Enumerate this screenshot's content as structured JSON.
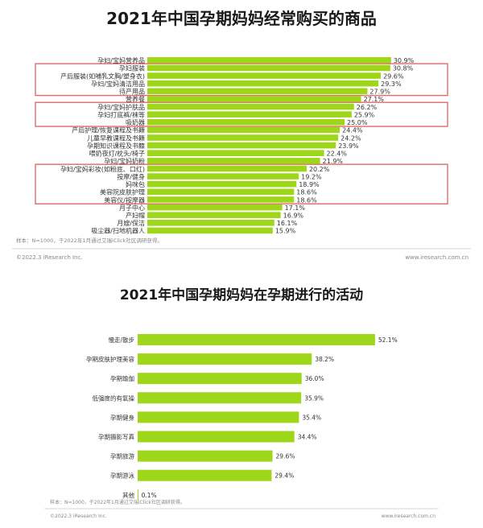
{
  "colors": {
    "bar": "#9ed61a",
    "highlight_box": "#e06b6b",
    "title": "#1a1a1a",
    "text": "#333333",
    "footer": "#888888",
    "rule": "#c8c8c8"
  },
  "chart_data": [
    {
      "type": "bar",
      "orientation": "horizontal",
      "title": "2021年中国孕期妈妈经常购买的商品",
      "categories": [
        "孕妇/宝妈营养品",
        "孕妇服装",
        "产后服装(如哺乳文胸/塑身衣)",
        "孕妇/宝妈清洁用品",
        "待产用品",
        "营养餐",
        "孕妇/宝妈护肤品",
        "孕妇打底裤/袜等",
        "吸奶器",
        "产后护理/恢复课程及书籍",
        "儿童早教课程及书籍",
        "孕期知识课程及书籍",
        "喂奶夜灯/枕头/椅子",
        "孕妇/宝妈奶粉",
        "孕妇/宝妈彩妆(如粉底、口红)",
        "按摩/健身",
        "妈咪包",
        "美容院皮肤护理",
        "美容仪/按摩器",
        "月子中心",
        "产妇帽",
        "月嫂/保洁",
        "吸尘器/扫地机器人"
      ],
      "values": [
        30.9,
        30.8,
        29.6,
        29.3,
        27.9,
        27.1,
        26.2,
        25.9,
        25.0,
        24.4,
        24.2,
        23.9,
        22.4,
        21.9,
        20.2,
        19.2,
        18.9,
        18.6,
        18.6,
        17.1,
        16.9,
        16.1,
        15.9
      ],
      "value_labels": [
        "30.9%",
        "30.8%",
        "29.6%",
        "29.3%",
        "27.9%",
        "27.1%",
        "26.2%",
        "25.9%",
        "25.0%",
        "24.4%",
        "24.2%",
        "23.9%",
        "22.4%",
        "21.9%",
        "20.2%",
        "19.2%",
        "18.9%",
        "18.6%",
        "18.6%",
        "17.1%",
        "16.9%",
        "16.1%",
        "15.9%"
      ],
      "highlight_groups": [
        [
          1,
          4
        ],
        [
          6,
          8
        ],
        [
          14,
          18
        ]
      ],
      "xlabel": "",
      "ylabel": "",
      "grid": false,
      "legend": "none",
      "note": "样本：N=1000，于2022年1月通过艾瑞iClick社区调研获得。",
      "copyright": "©2022.3 iResearch Inc.",
      "website": "www.iresearch.com.cn"
    },
    {
      "type": "bar",
      "orientation": "horizontal",
      "title": "2021年中国孕期妈妈在孕期进行的活动",
      "categories": [
        "慢走/散步",
        "孕期皮肤护理美容",
        "孕期瑜伽",
        "低强度的有氧操",
        "孕期健身",
        "孕期摄影写真",
        "孕期旅游",
        "孕期游泳",
        "其他"
      ],
      "values": [
        52.1,
        38.2,
        36.0,
        35.9,
        35.4,
        34.4,
        29.6,
        29.4,
        0.1
      ],
      "value_labels": [
        "52.1%",
        "38.2%",
        "36.0%",
        "35.9%",
        "35.4%",
        "34.4%",
        "29.6%",
        "29.4%",
        "0.1%"
      ],
      "xlabel": "",
      "ylabel": "",
      "grid": false,
      "legend": "none",
      "note": "样本：N=1000，于2022年1月通过艾瑞iClick社区调研获得。",
      "copyright": "©2022.3 iResearch Inc.",
      "website": "www.iresearch.com.cn"
    }
  ]
}
